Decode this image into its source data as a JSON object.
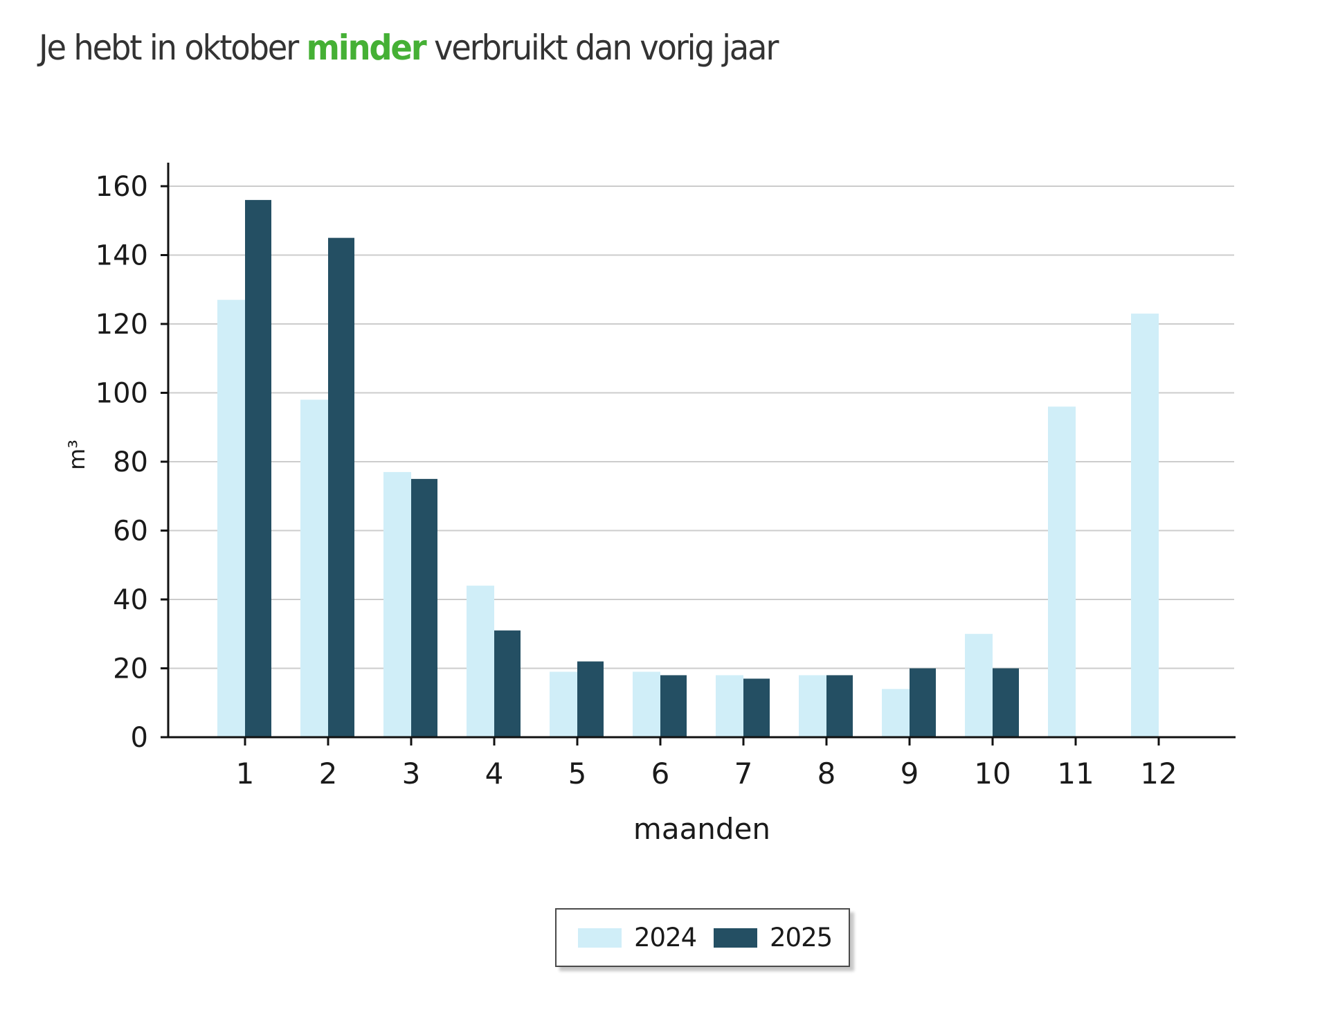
{
  "header": {
    "title_prefix": "Je hebt in oktober ",
    "title_highlight": "minder",
    "title_suffix": " verbruikt dan vorig jaar",
    "highlight_color": "#45b035"
  },
  "colors": {
    "series_2024": "#d0eef8",
    "series_2025": "#244f63",
    "axis": "#111111",
    "grid": "#cccccc",
    "text": "#1a1a1a"
  },
  "legend": {
    "items": [
      {
        "label": "2024",
        "color": "#d0eef8"
      },
      {
        "label": "2025",
        "color": "#244f63"
      }
    ]
  },
  "chart_data": {
    "type": "bar",
    "title": "Je hebt in oktober minder verbruikt dan vorig jaar",
    "xlabel": "maanden",
    "ylabel": "m³",
    "categories": [
      "1",
      "2",
      "3",
      "4",
      "5",
      "6",
      "7",
      "8",
      "9",
      "10",
      "11",
      "12"
    ],
    "series": [
      {
        "name": "2024",
        "values": [
          127,
          98,
          77,
          44,
          19,
          19,
          18,
          18,
          14,
          30,
          96,
          123
        ]
      },
      {
        "name": "2025",
        "values": [
          156,
          145,
          75,
          31,
          22,
          18,
          17,
          18,
          20,
          20,
          null,
          null
        ]
      }
    ],
    "ylim": [
      0,
      160
    ],
    "yticks": [
      0,
      20,
      40,
      60,
      80,
      100,
      120,
      140,
      160
    ],
    "grid": true,
    "legend_position": "bottom"
  }
}
